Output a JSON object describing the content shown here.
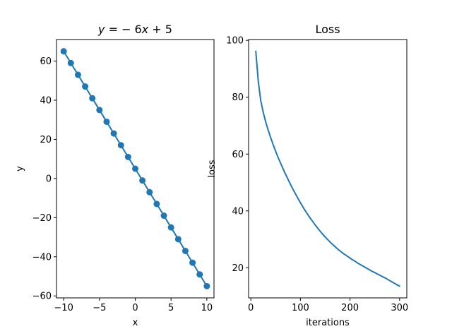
{
  "figure": {
    "background": "#ffffff",
    "accent_color": "#1f77b4",
    "spine_color": "#000000",
    "text_color": "#000000"
  },
  "chart_data": [
    {
      "name": "linear-fit",
      "type": "line",
      "title": "y = − 6x + 5",
      "title_italic_vars": true,
      "xlabel": "x",
      "ylabel": "y",
      "marker": "circle",
      "grid": false,
      "legend": null,
      "xlim": [
        -11,
        11
      ],
      "ylim": [
        -61,
        71
      ],
      "xticks": [
        -10,
        -5,
        0,
        5,
        10
      ],
      "xtick_labels": [
        "−10",
        "−5",
        "0",
        "5",
        "10"
      ],
      "yticks": [
        -60,
        -40,
        -20,
        0,
        20,
        40,
        60
      ],
      "ytick_labels": [
        "−60",
        "−40",
        "−20",
        "0",
        "20",
        "40",
        "60"
      ],
      "x": [
        -10,
        -9,
        -8,
        -7,
        -6,
        -5,
        -4,
        -3,
        -2,
        -1,
        0,
        1,
        2,
        3,
        4,
        5,
        6,
        7,
        8,
        9,
        10
      ],
      "y": [
        65,
        59,
        53,
        47,
        41,
        35,
        29,
        23,
        17,
        11,
        5,
        -1,
        -7,
        -13,
        -19,
        -25,
        -31,
        -37,
        -43,
        -49,
        -55
      ]
    },
    {
      "name": "loss-curve",
      "type": "line",
      "title": "Loss",
      "title_italic_vars": false,
      "xlabel": "iterations",
      "ylabel": "loss",
      "marker": null,
      "grid": false,
      "legend": null,
      "xlim": [
        -4.5,
        314.5
      ],
      "ylim": [
        9.4,
        100.3
      ],
      "xticks": [
        0,
        100,
        200,
        300
      ],
      "xtick_labels": [
        "0",
        "100",
        "200",
        "300"
      ],
      "yticks": [
        20,
        40,
        60,
        80,
        100
      ],
      "ytick_labels": [
        "20",
        "40",
        "60",
        "80",
        "100"
      ],
      "x": [
        10,
        15,
        20,
        25,
        30,
        35,
        40,
        45,
        50,
        55,
        60,
        65,
        70,
        75,
        80,
        85,
        90,
        95,
        100,
        105,
        110,
        115,
        120,
        125,
        130,
        135,
        140,
        145,
        150,
        155,
        160,
        165,
        170,
        175,
        180,
        185,
        190,
        195,
        200,
        205,
        210,
        215,
        220,
        225,
        230,
        235,
        240,
        245,
        250,
        255,
        260,
        265,
        270,
        275,
        280,
        285,
        290,
        295,
        300
      ],
      "y": [
        96.2,
        85.6,
        78.8,
        74.7,
        71.3,
        68.4,
        65.8,
        63.3,
        61.0,
        58.8,
        56.8,
        54.8,
        52.9,
        51.1,
        49.3,
        47.6,
        46.0,
        44.4,
        42.9,
        41.4,
        40.0,
        38.7,
        37.4,
        36.2,
        35.0,
        33.9,
        32.8,
        31.8,
        30.8,
        29.9,
        29.0,
        28.2,
        27.4,
        26.6,
        25.9,
        25.2,
        24.6,
        24.0,
        23.4,
        22.8,
        22.3,
        21.7,
        21.2,
        20.7,
        20.2,
        19.7,
        19.2,
        18.7,
        18.3,
        17.8,
        17.4,
        16.9,
        16.5,
        16.0,
        15.5,
        15.0,
        14.5,
        14.0,
        13.5
      ]
    }
  ]
}
